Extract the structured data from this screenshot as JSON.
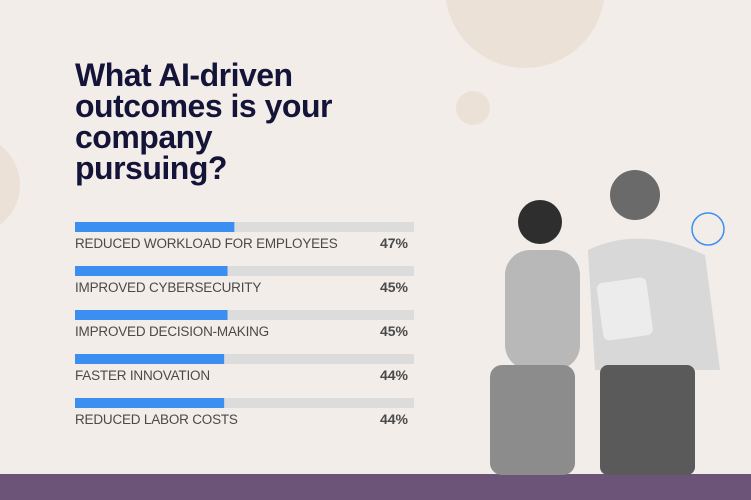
{
  "chart_data": {
    "type": "bar",
    "orientation": "horizontal",
    "title": "What AI-driven outcomes is your company pursuing?",
    "categories": [
      "REDUCED WORKLOAD FOR EMPLOYEES",
      "IMPROVED CYBERSECURITY",
      "IMPROVED DECISION-MAKING",
      "FASTER INNOVATION",
      "REDUCED LABOR COSTS"
    ],
    "values": [
      47,
      45,
      45,
      44,
      44
    ],
    "value_labels": [
      "47%",
      "45%",
      "45%",
      "44%",
      "44%"
    ],
    "color": "#3b8ff0",
    "xlim": [
      0,
      100
    ]
  }
}
